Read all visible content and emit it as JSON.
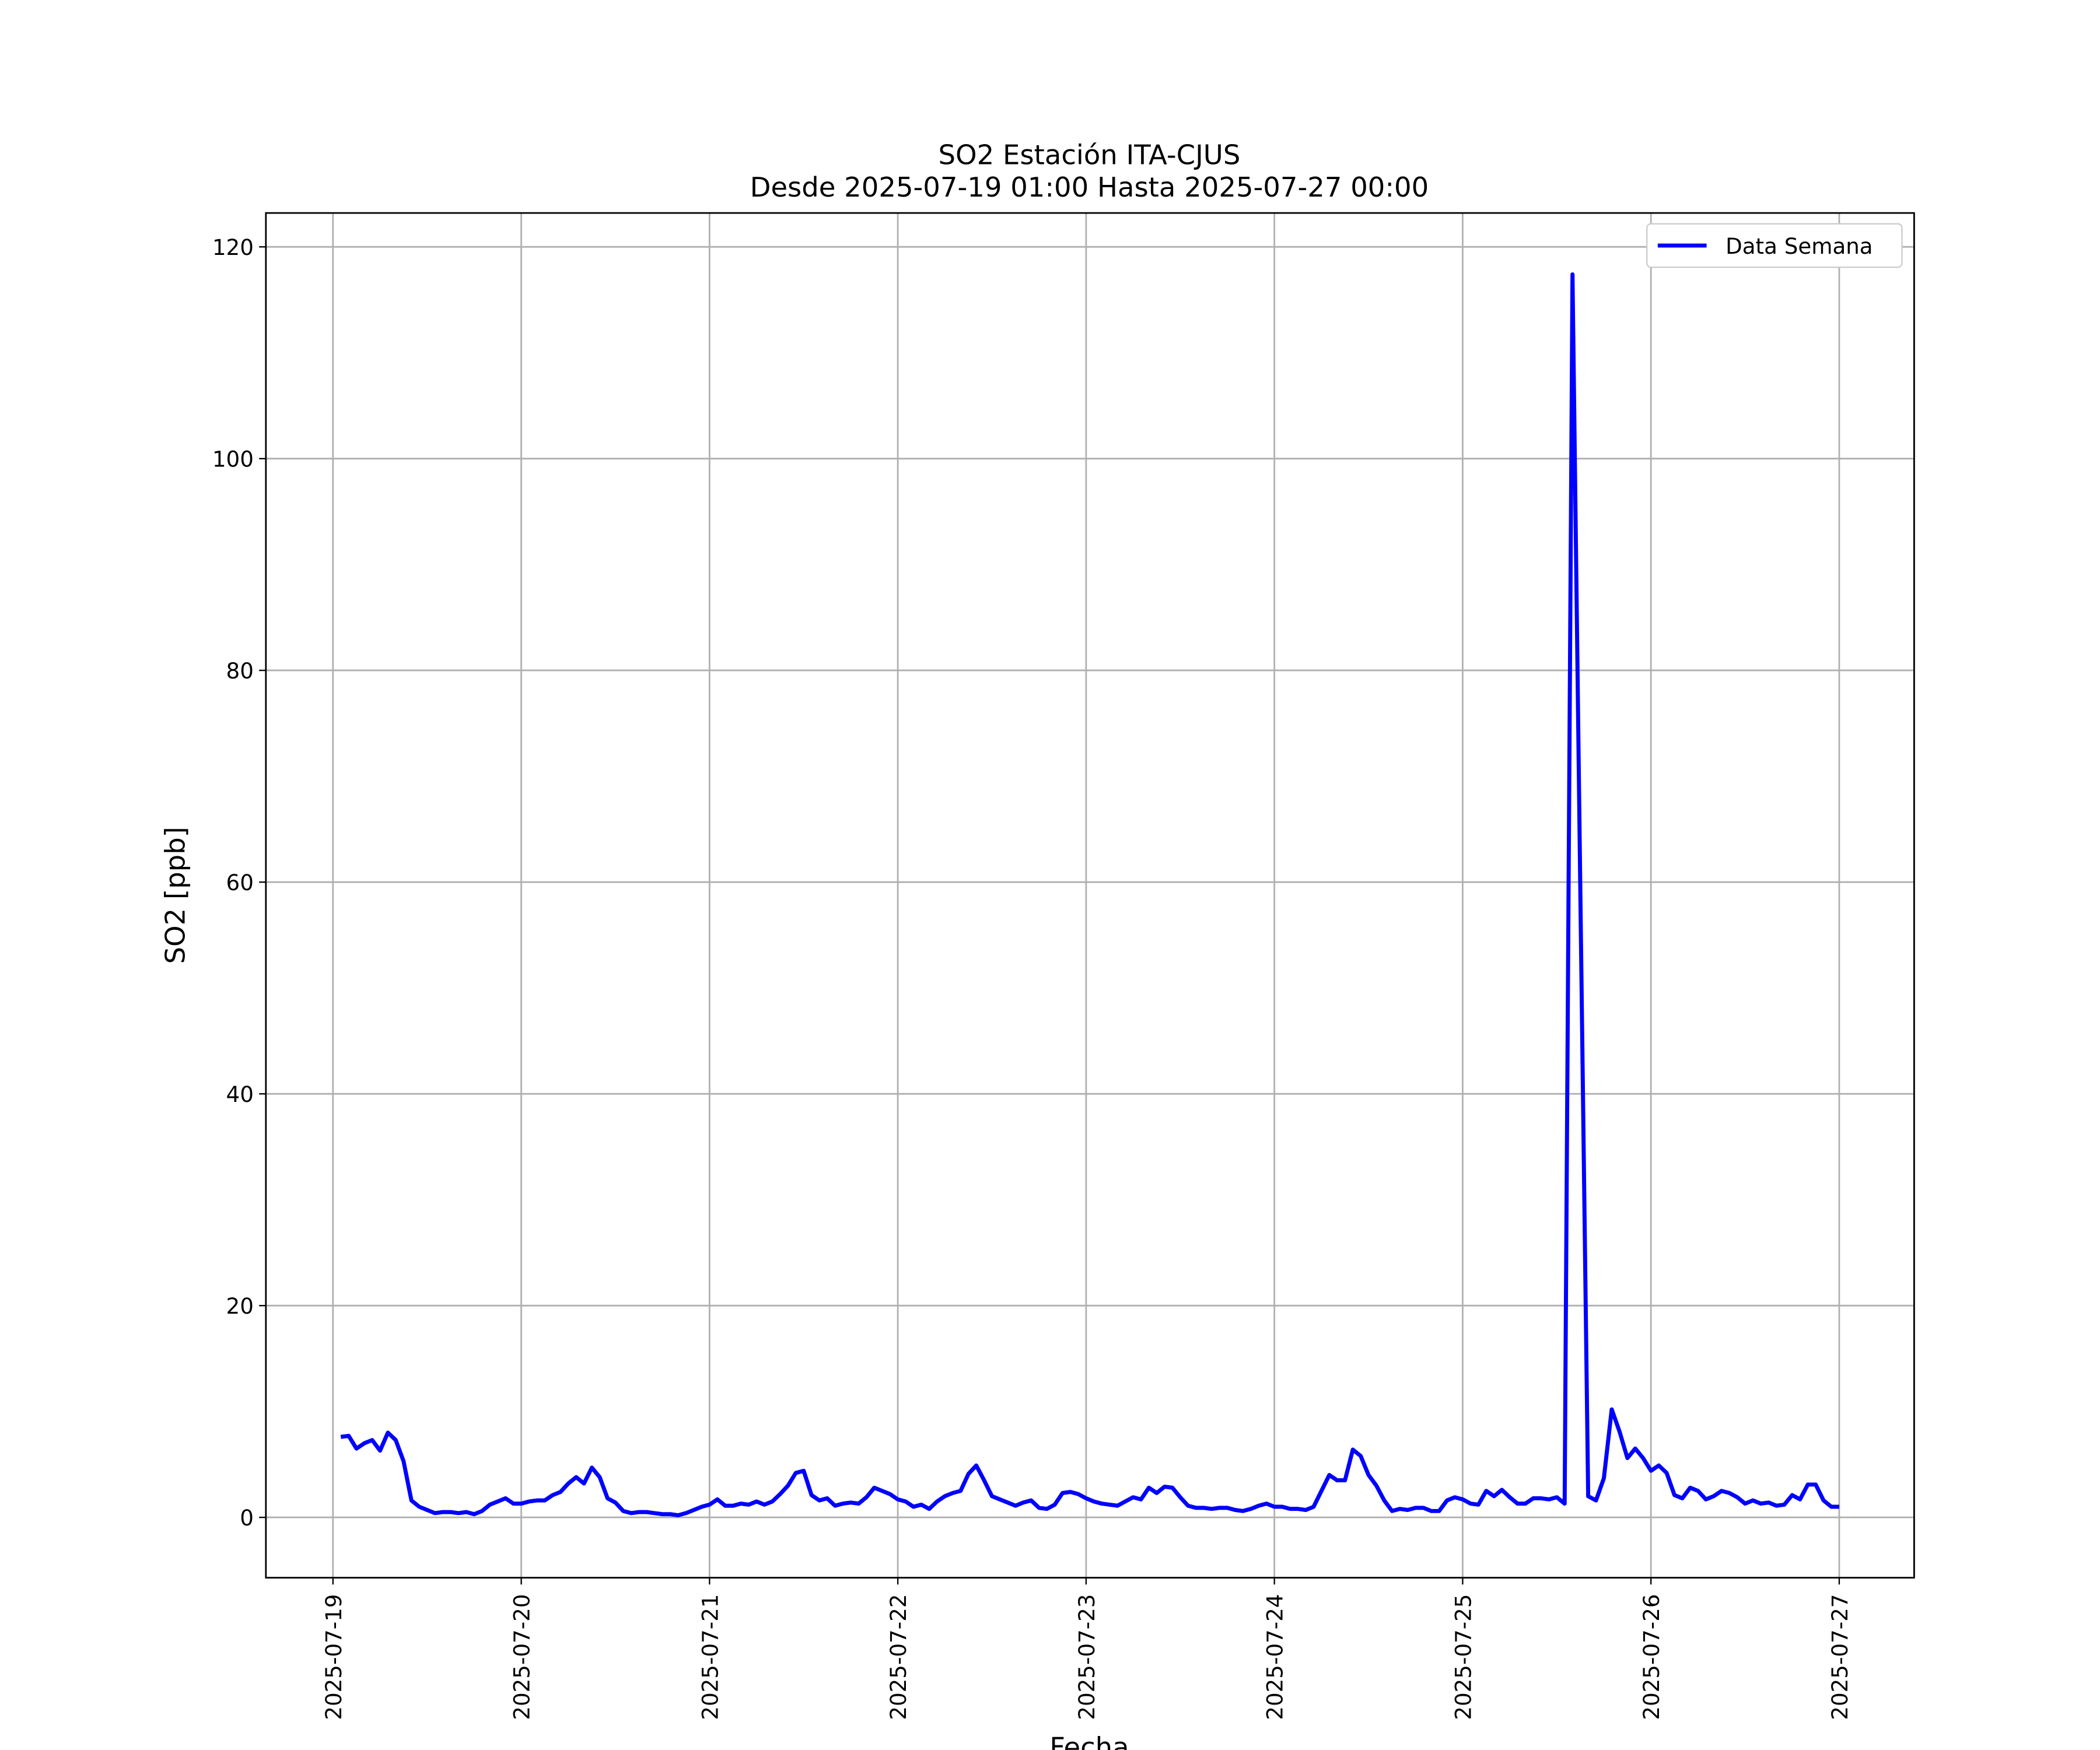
{
  "chart_data": {
    "type": "line",
    "title": "SO2 Estación ITA-CJUS",
    "subtitle": "Desde 2025-07-19 01:00 Hasta 2025-07-27 00:00",
    "x_label": "Fecha",
    "y_label": "SO2 [ppb]",
    "x": [
      "2025-07-19 01:00",
      "2025-07-19 02:00",
      "2025-07-19 03:00",
      "2025-07-19 04:00",
      "2025-07-19 05:00",
      "2025-07-19 06:00",
      "2025-07-19 07:00",
      "2025-07-19 08:00",
      "2025-07-19 09:00",
      "2025-07-19 10:00",
      "2025-07-19 11:00",
      "2025-07-19 12:00",
      "2025-07-19 13:00",
      "2025-07-19 14:00",
      "2025-07-19 15:00",
      "2025-07-19 16:00",
      "2025-07-19 17:00",
      "2025-07-19 18:00",
      "2025-07-19 19:00",
      "2025-07-19 20:00",
      "2025-07-19 21:00",
      "2025-07-19 22:00",
      "2025-07-19 23:00",
      "2025-07-20 00:00",
      "2025-07-20 01:00",
      "2025-07-20 02:00",
      "2025-07-20 03:00",
      "2025-07-20 04:00",
      "2025-07-20 05:00",
      "2025-07-20 06:00",
      "2025-07-20 07:00",
      "2025-07-20 08:00",
      "2025-07-20 09:00",
      "2025-07-20 10:00",
      "2025-07-20 11:00",
      "2025-07-20 12:00",
      "2025-07-20 13:00",
      "2025-07-20 14:00",
      "2025-07-20 15:00",
      "2025-07-20 16:00",
      "2025-07-20 17:00",
      "2025-07-20 18:00",
      "2025-07-20 19:00",
      "2025-07-20 20:00",
      "2025-07-20 21:00",
      "2025-07-20 22:00",
      "2025-07-20 23:00",
      "2025-07-21 00:00",
      "2025-07-21 01:00",
      "2025-07-21 02:00",
      "2025-07-21 03:00",
      "2025-07-21 04:00",
      "2025-07-21 05:00",
      "2025-07-21 06:00",
      "2025-07-21 07:00",
      "2025-07-21 08:00",
      "2025-07-21 09:00",
      "2025-07-21 10:00",
      "2025-07-21 11:00",
      "2025-07-21 12:00",
      "2025-07-21 13:00",
      "2025-07-21 14:00",
      "2025-07-21 15:00",
      "2025-07-21 16:00",
      "2025-07-21 17:00",
      "2025-07-21 18:00",
      "2025-07-21 19:00",
      "2025-07-21 20:00",
      "2025-07-21 21:00",
      "2025-07-21 22:00",
      "2025-07-21 23:00",
      "2025-07-22 00:00",
      "2025-07-22 01:00",
      "2025-07-22 02:00",
      "2025-07-22 03:00",
      "2025-07-22 04:00",
      "2025-07-22 05:00",
      "2025-07-22 06:00",
      "2025-07-22 07:00",
      "2025-07-22 08:00",
      "2025-07-22 09:00",
      "2025-07-22 10:00",
      "2025-07-22 11:00",
      "2025-07-22 12:00",
      "2025-07-22 13:00",
      "2025-07-22 14:00",
      "2025-07-22 15:00",
      "2025-07-22 16:00",
      "2025-07-22 17:00",
      "2025-07-22 18:00",
      "2025-07-22 19:00",
      "2025-07-22 20:00",
      "2025-07-22 21:00",
      "2025-07-22 22:00",
      "2025-07-22 23:00",
      "2025-07-23 00:00",
      "2025-07-23 01:00",
      "2025-07-23 02:00",
      "2025-07-23 03:00",
      "2025-07-23 04:00",
      "2025-07-23 05:00",
      "2025-07-23 06:00",
      "2025-07-23 07:00",
      "2025-07-23 08:00",
      "2025-07-23 09:00",
      "2025-07-23 10:00",
      "2025-07-23 11:00",
      "2025-07-23 12:00",
      "2025-07-23 13:00",
      "2025-07-23 14:00",
      "2025-07-23 15:00",
      "2025-07-23 16:00",
      "2025-07-23 17:00",
      "2025-07-23 18:00",
      "2025-07-23 19:00",
      "2025-07-23 20:00",
      "2025-07-23 21:00",
      "2025-07-23 22:00",
      "2025-07-23 23:00",
      "2025-07-24 00:00",
      "2025-07-24 01:00",
      "2025-07-24 02:00",
      "2025-07-24 03:00",
      "2025-07-24 04:00",
      "2025-07-24 05:00",
      "2025-07-24 06:00",
      "2025-07-24 07:00",
      "2025-07-24 08:00",
      "2025-07-24 09:00",
      "2025-07-24 10:00",
      "2025-07-24 11:00",
      "2025-07-24 12:00",
      "2025-07-24 13:00",
      "2025-07-24 14:00",
      "2025-07-24 15:00",
      "2025-07-24 16:00",
      "2025-07-24 17:00",
      "2025-07-24 18:00",
      "2025-07-24 19:00",
      "2025-07-24 20:00",
      "2025-07-24 21:00",
      "2025-07-24 22:00",
      "2025-07-24 23:00",
      "2025-07-25 00:00",
      "2025-07-25 01:00",
      "2025-07-25 02:00",
      "2025-07-25 03:00",
      "2025-07-25 04:00",
      "2025-07-25 05:00",
      "2025-07-25 06:00",
      "2025-07-25 07:00",
      "2025-07-25 08:00",
      "2025-07-25 09:00",
      "2025-07-25 10:00",
      "2025-07-25 11:00",
      "2025-07-25 12:00",
      "2025-07-25 13:00",
      "2025-07-25 14:00",
      "2025-07-25 15:00",
      "2025-07-25 16:00",
      "2025-07-25 17:00",
      "2025-07-25 18:00",
      "2025-07-25 19:00",
      "2025-07-25 20:00",
      "2025-07-25 21:00",
      "2025-07-25 22:00",
      "2025-07-25 23:00",
      "2025-07-26 00:00",
      "2025-07-26 01:00",
      "2025-07-26 02:00",
      "2025-07-26 03:00",
      "2025-07-26 04:00",
      "2025-07-26 05:00",
      "2025-07-26 06:00",
      "2025-07-26 07:00",
      "2025-07-26 08:00",
      "2025-07-26 09:00",
      "2025-07-26 10:00",
      "2025-07-26 11:00",
      "2025-07-26 12:00",
      "2025-07-26 13:00",
      "2025-07-26 14:00",
      "2025-07-26 15:00",
      "2025-07-26 16:00",
      "2025-07-26 17:00",
      "2025-07-26 18:00",
      "2025-07-26 19:00",
      "2025-07-26 20:00",
      "2025-07-26 21:00",
      "2025-07-26 22:00",
      "2025-07-26 23:00",
      "2025-07-27 00:00"
    ],
    "series": [
      {
        "name": "Data Semana",
        "color": "#0000ff",
        "values": [
          7.6,
          7.7,
          6.5,
          7.0,
          7.3,
          6.3,
          8.0,
          7.3,
          5.3,
          1.6,
          1.0,
          0.7,
          0.4,
          0.5,
          0.5,
          0.4,
          0.5,
          0.3,
          0.6,
          1.2,
          1.5,
          1.8,
          1.3,
          1.3,
          1.5,
          1.6,
          1.6,
          2.1,
          2.4,
          3.2,
          3.8,
          3.2,
          4.7,
          3.8,
          1.8,
          1.4,
          0.6,
          0.4,
          0.5,
          0.5,
          0.4,
          0.3,
          0.3,
          0.2,
          0.4,
          0.7,
          1.0,
          1.2,
          1.7,
          1.1,
          1.1,
          1.3,
          1.2,
          1.5,
          1.2,
          1.5,
          2.2,
          3.0,
          4.2,
          4.4,
          2.1,
          1.6,
          1.8,
          1.1,
          1.3,
          1.4,
          1.3,
          1.9,
          2.8,
          2.5,
          2.2,
          1.7,
          1.5,
          1.0,
          1.2,
          0.8,
          1.5,
          2.0,
          2.3,
          2.5,
          4.1,
          4.9,
          3.5,
          2.0,
          1.7,
          1.4,
          1.1,
          1.4,
          1.6,
          0.9,
          0.8,
          1.2,
          2.3,
          2.4,
          2.2,
          1.8,
          1.5,
          1.3,
          1.2,
          1.1,
          1.5,
          1.9,
          1.7,
          2.8,
          2.3,
          2.9,
          2.8,
          1.9,
          1.1,
          0.9,
          0.9,
          0.8,
          0.9,
          0.9,
          0.7,
          0.6,
          0.8,
          1.1,
          1.3,
          1.0,
          1.0,
          0.8,
          0.8,
          0.7,
          1.0,
          2.5,
          4.0,
          3.5,
          3.5,
          6.4,
          5.8,
          4.0,
          3.0,
          1.6,
          0.6,
          0.8,
          0.7,
          0.9,
          0.9,
          0.6,
          0.6,
          1.6,
          1.9,
          1.7,
          1.3,
          1.2,
          2.5,
          2.0,
          2.6,
          1.9,
          1.3,
          1.3,
          1.8,
          1.8,
          1.7,
          1.9,
          1.3,
          117.4,
          59,
          2.0,
          1.6,
          3.7,
          10.2,
          8.1,
          5.6,
          6.5,
          5.6,
          4.4,
          4.9,
          4.2,
          2.1,
          1.8,
          2.8,
          2.5,
          1.7,
          2.0,
          2.5,
          2.3,
          1.9,
          1.3,
          1.6,
          1.3,
          1.4,
          1.1,
          1.2,
          2.1,
          1.7,
          3.1,
          3.1,
          1.6,
          1.0,
          1.0
        ]
      }
    ],
    "xlim": [
      "2025-07-18 15:27",
      "2025-07-27 09:33"
    ],
    "xticks": [
      "2025-07-19",
      "2025-07-20",
      "2025-07-21",
      "2025-07-22",
      "2025-07-23",
      "2025-07-24",
      "2025-07-25",
      "2025-07-26",
      "2025-07-27"
    ],
    "ylim": [
      -5.7,
      123.2
    ],
    "yticks": [
      0,
      20,
      40,
      60,
      80,
      100,
      120
    ],
    "grid": true,
    "legend_loc": "upper right"
  }
}
